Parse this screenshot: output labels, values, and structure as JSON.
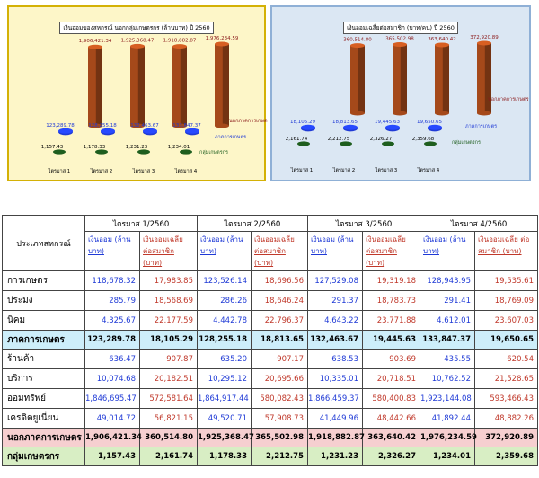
{
  "chart_data": [
    {
      "type": "bar",
      "title": "เงินออมของสหกรณ์ นอกกลุ่มเกษตรกร (ล้านบาท) ปี 2560",
      "categories": [
        "ไตรมาส 1",
        "ไตรมาส 2",
        "ไตรมาส 3",
        "ไตรมาส 4"
      ],
      "series": [
        {
          "name": "นอกภาคการเกษตร",
          "values": [
            1906421.34,
            1925368.47,
            1918882.87,
            1976234.59
          ],
          "labels": [
            "1,906,421.34",
            "1,925,368.47",
            "1,918,882.87",
            "1,976,234.59"
          ],
          "color": "#a5491a"
        },
        {
          "name": "ภาคการเกษตร",
          "values": [
            123289.78,
            128255.18,
            132463.67,
            133847.37
          ],
          "labels": [
            "123,289.78",
            "128,255.18",
            "132,463.67",
            "133,847.37"
          ],
          "color": "#1f3ad6"
        },
        {
          "name": "กลุ่มเกษตรกร",
          "values": [
            1157.43,
            1178.33,
            1231.23,
            1234.01
          ],
          "labels": [
            "1,157.43",
            "1,178.33",
            "1,231.23",
            "1,234.01"
          ],
          "color": "#1e5e1e"
        }
      ]
    },
    {
      "type": "bar",
      "title": "เงินออมเฉลี่ยต่อสมาชิก (บาท/คน) ปี 2560",
      "categories": [
        "ไตรมาส 1",
        "ไตรมาส 2",
        "ไตรมาส 3",
        "ไตรมาส 4"
      ],
      "series": [
        {
          "name": "นอกภาคการเกษตร",
          "values": [
            360514.8,
            365502.98,
            363640.42,
            372920.89
          ],
          "labels": [
            "360,514.80",
            "365,502.98",
            "363,640.42",
            "372,920.89"
          ],
          "color": "#a5491a"
        },
        {
          "name": "ภาคการเกษตร",
          "values": [
            18105.29,
            18813.65,
            19445.63,
            19650.65
          ],
          "labels": [
            "18,105.29",
            "18,813.65",
            "19,445.63",
            "19,650.65"
          ],
          "color": "#1f3ad6"
        },
        {
          "name": "กลุ่มเกษตรกร",
          "values": [
            2161.74,
            2212.75,
            2326.27,
            2359.68
          ],
          "labels": [
            "2,161.74",
            "2,212.75",
            "2,326.27",
            "2,359.68"
          ],
          "color": "#1e5e1e"
        }
      ]
    }
  ],
  "table": {
    "corner": "ประเภทสหกรณ์",
    "quarters": [
      "ไตรมาส 1/2560",
      "ไตรมาส  2/2560",
      "ไตรมาส 3/2560",
      "ไตรมาส 4/2560"
    ],
    "sub_savings": "เงินออม (ล้านบาท)",
    "sub_avg": "เงินออมเฉลี่ย ต่อสมาชิก (บาท)",
    "rows": [
      {
        "kind": "row",
        "name": "การเกษตร",
        "cells": [
          "118,678.32",
          "17,983.85",
          "123,526.14",
          "18,696.56",
          "127,529.08",
          "19,319.18",
          "128,943.95",
          "19,535.61"
        ]
      },
      {
        "kind": "row",
        "name": "ประมง",
        "cells": [
          "285.79",
          "18,568.69",
          "286.26",
          "18,646.24",
          "291.37",
          "18,783.73",
          "291.41",
          "18,769.09"
        ]
      },
      {
        "kind": "row",
        "name": "นิคม",
        "cells": [
          "4,325.67",
          "22,177.59",
          "4,442.78",
          "22,796.37",
          "4,643.22",
          "23,771.88",
          "4,612.01",
          "23,607.03"
        ]
      },
      {
        "kind": "sum-agri",
        "name": "ภาคการเกษตร",
        "cells": [
          "123,289.78",
          "18,105.29",
          "128,255.18",
          "18,813.65",
          "132,463.67",
          "19,445.63",
          "133,847.37",
          "19,650.65"
        ]
      },
      {
        "kind": "row",
        "name": "ร้านค้า",
        "cells": [
          "636.47",
          "907.87",
          "635.20",
          "907.17",
          "638.53",
          "903.69",
          "435.55",
          "620.54"
        ]
      },
      {
        "kind": "row",
        "name": "บริการ",
        "cells": [
          "10,074.68",
          "20,182.51",
          "10,295.12",
          "20,695.66",
          "10,335.01",
          "20,718.51",
          "10,762.52",
          "21,528.65"
        ]
      },
      {
        "kind": "row",
        "name": "ออมทรัพย์",
        "cells": [
          "1,846,695.47",
          "572,581.64",
          "1,864,917.44",
          "580,082.43",
          "1,866,459.37",
          "580,400.83",
          "1,923,144.08",
          "593,466.43"
        ]
      },
      {
        "kind": "row",
        "name": "เครดิตยูเนี่ยน",
        "cells": [
          "49,014.72",
          "56,821.15",
          "49,520.71",
          "57,908.73",
          "41,449.96",
          "48,442.66",
          "41,892.44",
          "48,882.26"
        ]
      },
      {
        "kind": "sum-non",
        "name": "นอกภาคการเกษตร",
        "cells": [
          "1,906,421.34",
          "360,514.80",
          "1,925,368.47",
          "365,502.98",
          "1,918,882.87",
          "363,640.42",
          "1,976,234.59",
          "372,920.89"
        ]
      },
      {
        "kind": "sum-grp",
        "name": "กลุ่มเกษตรกร",
        "cells": [
          "1,157.43",
          "2,161.74",
          "1,178.33",
          "2,212.75",
          "1,231.23",
          "2,326.27",
          "1,234.01",
          "2,359.68"
        ]
      }
    ]
  }
}
